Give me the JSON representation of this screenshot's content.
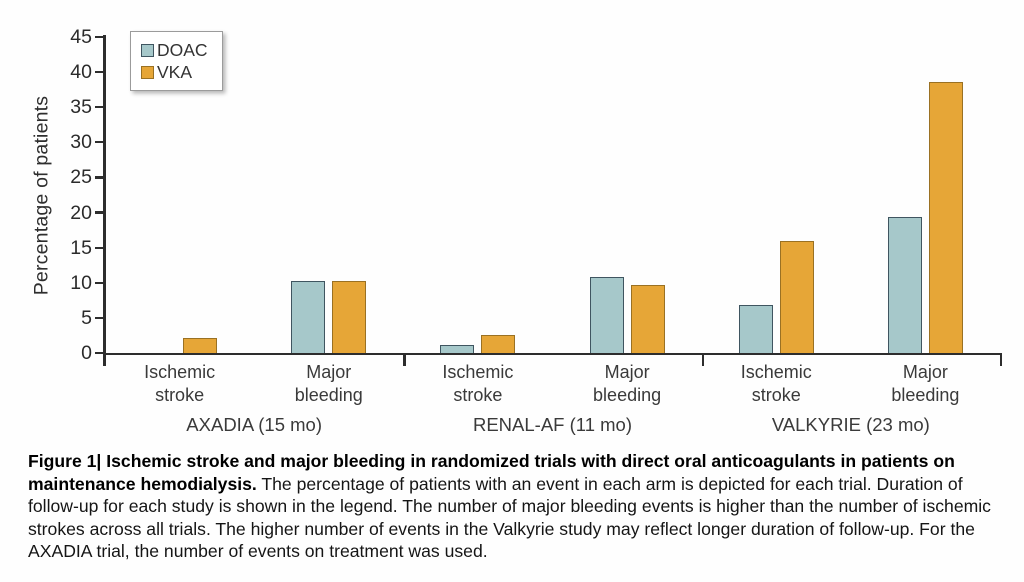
{
  "figure": {
    "caption_bold": "Figure 1| Ischemic stroke and major bleeding in randomized trials with direct oral anticoagulants in patients on maintenance hemodialysis.",
    "caption_text": "The percentage of patients with an event in each arm is depicted for each trial. Duration of follow-up for each study is shown in the legend. The number of major bleeding events is higher than the number of ischemic strokes across all trials. The higher number of events in the Valkyrie study may reflect longer duration of follow-up. For the AXADIA trial, the number of events on treatment was used."
  },
  "chart_data": {
    "type": "bar",
    "title": "",
    "ylabel": "Percentage of patients",
    "ylim": [
      0,
      45
    ],
    "ytick_step": 5,
    "grid": false,
    "legend_position": "upper-left",
    "legend": [
      {
        "name": "DOAC",
        "color": "#a6c8ca",
        "border": "#3f5560"
      },
      {
        "name": "VKA",
        "color": "#e6a637",
        "border": "#9a7123"
      }
    ],
    "categories": [
      [
        "Ischemic",
        "stroke"
      ],
      [
        "Major",
        "bleeding"
      ]
    ],
    "groups": [
      {
        "label": "AXADIA (15 mo)",
        "series": [
          {
            "name": "DOAC",
            "values": [
              0,
              10.3
            ]
          },
          {
            "name": "VKA",
            "values": [
              2.1,
              10.2
            ]
          }
        ]
      },
      {
        "label": "RENAL-AF (11 mo)",
        "series": [
          {
            "name": "DOAC",
            "values": [
              1.1,
              10.8
            ]
          },
          {
            "name": "VKA",
            "values": [
              2.6,
              9.7
            ]
          }
        ]
      },
      {
        "label": "VALKYRIE (23 mo)",
        "series": [
          {
            "name": "DOAC",
            "values": [
              6.8,
              19.3
            ]
          },
          {
            "name": "VKA",
            "values": [
              15.9,
              38.6
            ]
          }
        ]
      }
    ]
  }
}
